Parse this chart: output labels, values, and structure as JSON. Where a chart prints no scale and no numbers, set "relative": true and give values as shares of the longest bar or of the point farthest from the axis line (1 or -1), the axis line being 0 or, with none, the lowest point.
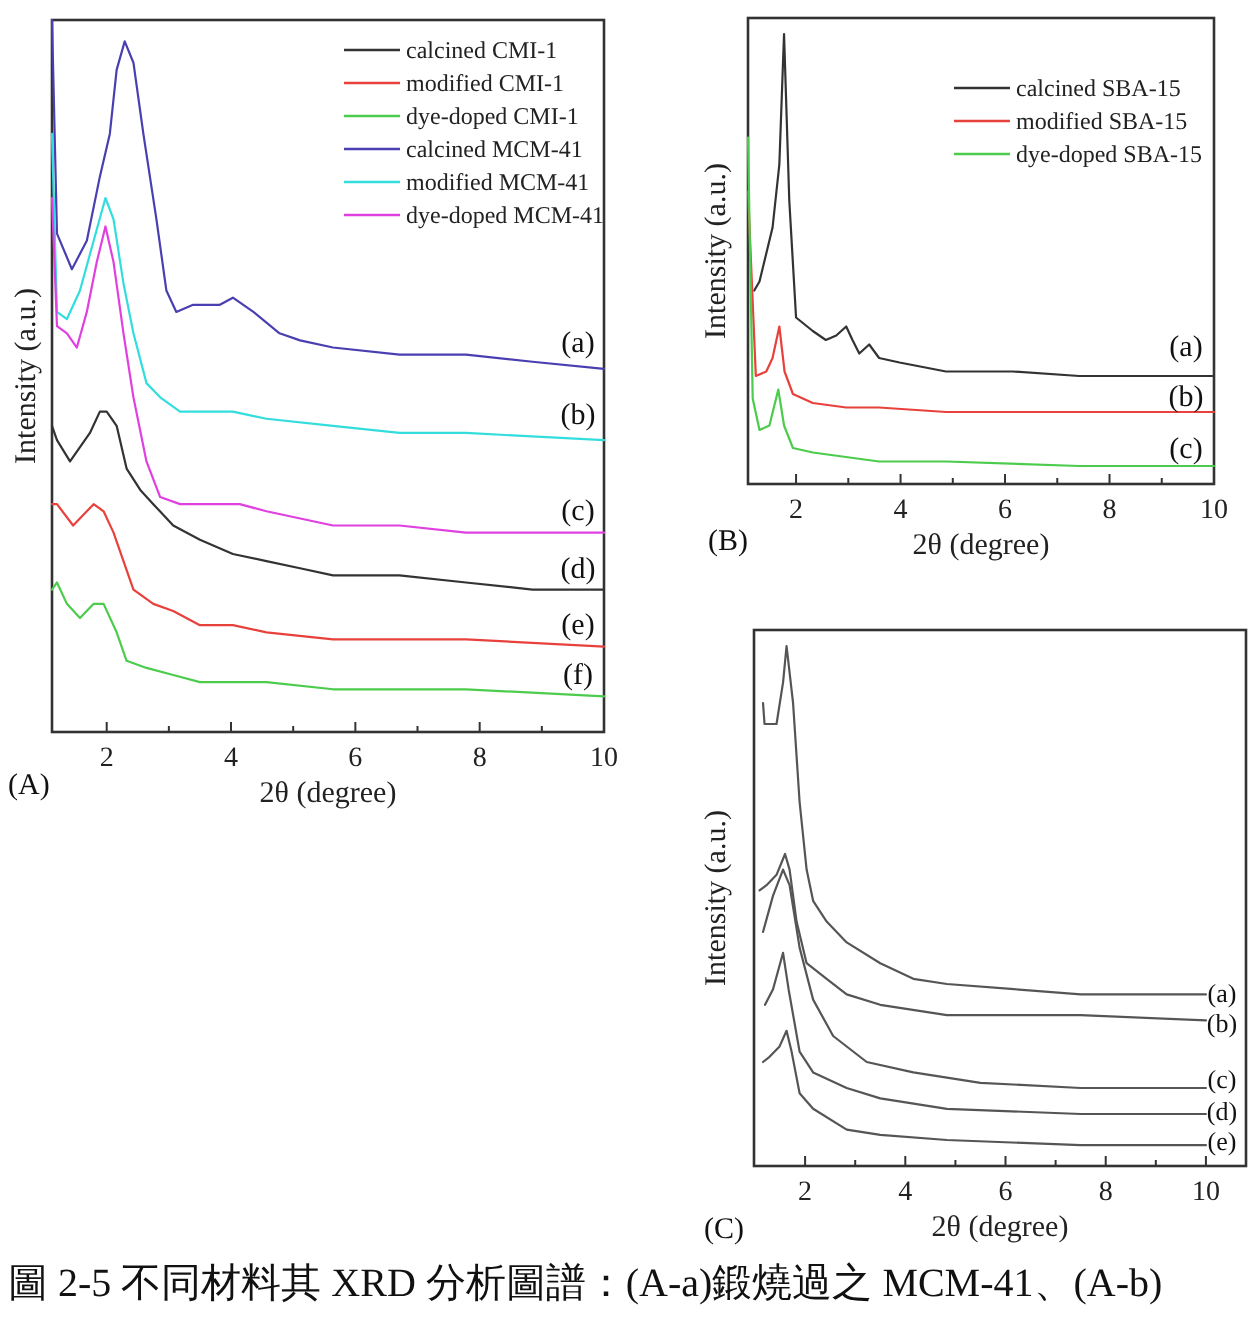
{
  "chart_data": [
    {
      "type": "line",
      "relative": true,
      "xlabel": "2θ (degree)",
      "ylabel": "Intensity (a.u.)",
      "xlim": [
        1.12,
        10
      ],
      "xticks": [
        2,
        {
          "value": 3,
          "label": null
        },
        4,
        {
          "value": 5,
          "label": null
        },
        6,
        {
          "value": 7,
          "label": null
        },
        8,
        {
          "value": 9,
          "label": null
        },
        10
      ],
      "legend": "top right",
      "series": [
        {
          "name": "calcined CMI-1",
          "color": "#333333",
          "x": [
            1.12,
            1.2,
            1.41,
            1.57,
            1.73,
            1.89,
            2.0,
            2.16,
            2.32,
            2.54,
            2.75,
            3.07,
            3.5,
            4.03,
            4.57,
            5.11,
            5.64,
            6.71,
            7.78,
            8.85,
            10
          ],
          "values": [
            0.43,
            0.41,
            0.38,
            0.4,
            0.42,
            0.45,
            0.45,
            0.43,
            0.37,
            0.34,
            0.32,
            0.29,
            0.27,
            0.25,
            0.24,
            0.23,
            0.22,
            0.22,
            0.21,
            0.2,
            0.2
          ]
        },
        {
          "name": "modified CMI-1",
          "color": "#e8413c",
          "x": [
            1.12,
            1.2,
            1.46,
            1.68,
            1.79,
            1.95,
            2.11,
            2.27,
            2.43,
            2.75,
            3.07,
            3.5,
            4.03,
            4.57,
            5.64,
            6.71,
            7.78,
            10
          ],
          "values": [
            0.32,
            0.32,
            0.29,
            0.31,
            0.32,
            0.31,
            0.28,
            0.24,
            0.2,
            0.18,
            0.17,
            0.15,
            0.15,
            0.14,
            0.13,
            0.13,
            0.13,
            0.12
          ]
        },
        {
          "name": "dye-doped CMI-1",
          "color": "#4ccc4c",
          "x": [
            1.12,
            1.2,
            1.36,
            1.57,
            1.79,
            1.95,
            2.16,
            2.32,
            2.64,
            3.07,
            3.5,
            4.57,
            5.64,
            7.78,
            10
          ],
          "values": [
            0.2,
            0.21,
            0.18,
            0.16,
            0.18,
            0.18,
            0.14,
            0.1,
            0.09,
            0.08,
            0.07,
            0.07,
            0.06,
            0.06,
            0.05
          ]
        },
        {
          "name": "calcined MCM-41",
          "color": "#4a3fb0",
          "x": [
            1.12,
            1.2,
            1.44,
            1.68,
            1.89,
            2.05,
            2.16,
            2.29,
            2.43,
            2.59,
            2.8,
            2.96,
            3.12,
            3.39,
            3.82,
            4.03,
            4.36,
            4.78,
            5.11,
            5.64,
            6.71,
            7.78,
            8.85,
            10
          ],
          "values": [
            1.0,
            0.7,
            0.65,
            0.69,
            0.78,
            0.84,
            0.93,
            0.97,
            0.94,
            0.84,
            0.72,
            0.62,
            0.59,
            0.6,
            0.6,
            0.61,
            0.59,
            0.56,
            0.55,
            0.54,
            0.53,
            0.53,
            0.52,
            0.51
          ]
        },
        {
          "name": "modified MCM-41",
          "color": "#33dddd",
          "x": [
            1.12,
            1.2,
            1.36,
            1.57,
            1.79,
            1.98,
            2.11,
            2.27,
            2.43,
            2.64,
            2.86,
            3.18,
            4.03,
            4.57,
            5.64,
            6.71,
            7.78,
            10
          ],
          "values": [
            0.84,
            0.59,
            0.58,
            0.62,
            0.69,
            0.75,
            0.72,
            0.63,
            0.56,
            0.49,
            0.47,
            0.45,
            0.45,
            0.44,
            0.43,
            0.42,
            0.42,
            0.41
          ]
        },
        {
          "name": "dye-doped MCM-41",
          "color": "#e040e0",
          "x": [
            1.12,
            1.2,
            1.36,
            1.52,
            1.68,
            1.84,
            1.98,
            2.11,
            2.27,
            2.43,
            2.64,
            2.86,
            3.18,
            3.71,
            4.14,
            4.57,
            5.64,
            6.71,
            7.78,
            10
          ],
          "values": [
            0.75,
            0.57,
            0.56,
            0.54,
            0.59,
            0.66,
            0.71,
            0.66,
            0.56,
            0.47,
            0.38,
            0.33,
            0.32,
            0.32,
            0.32,
            0.31,
            0.29,
            0.29,
            0.28,
            0.28
          ]
        }
      ],
      "annotations": [
        "(a)",
        "(b)",
        "(c)",
        "(d)",
        "(e)",
        "(f)",
        "(A)"
      ]
    },
    {
      "type": "line",
      "relative": true,
      "xlabel": "2θ (degree)",
      "ylabel": "Intensity (a.u.)",
      "xlim": [
        1.08,
        10
      ],
      "xticks": [
        2,
        {
          "value": 3,
          "label": null
        },
        4,
        {
          "value": 5,
          "label": null
        },
        6,
        {
          "value": 7,
          "label": null
        },
        8,
        {
          "value": 9,
          "label": null
        },
        10
      ],
      "legend": "top right",
      "series": [
        {
          "name": "calcined SBA-15",
          "color": "#333333",
          "x": [
            1.2,
            1.3,
            1.55,
            1.68,
            1.77,
            1.87,
            2.0,
            2.32,
            2.57,
            2.77,
            2.96,
            3.08,
            3.21,
            3.4,
            3.59,
            3.98,
            4.87,
            6.15,
            7.42,
            10
          ],
          "values": [
            0.43,
            0.45,
            0.57,
            0.71,
            1.0,
            0.63,
            0.37,
            0.34,
            0.32,
            0.33,
            0.35,
            0.32,
            0.29,
            0.31,
            0.28,
            0.27,
            0.25,
            0.25,
            0.24,
            0.24
          ]
        },
        {
          "name": "modified SBA-15",
          "color": "#e8413c",
          "x": [
            1.08,
            1.23,
            1.43,
            1.55,
            1.68,
            1.78,
            1.94,
            2.32,
            2.96,
            3.59,
            4.87,
            7.42,
            10
          ],
          "values": [
            0.65,
            0.24,
            0.25,
            0.28,
            0.35,
            0.25,
            0.2,
            0.18,
            0.17,
            0.17,
            0.16,
            0.16,
            0.16
          ]
        },
        {
          "name": "dye-doped SBA-15",
          "color": "#4ccc4c",
          "x": [
            1.08,
            1.17,
            1.3,
            1.49,
            1.66,
            1.77,
            1.94,
            2.32,
            3.59,
            4.87,
            7.42,
            10
          ],
          "values": [
            0.77,
            0.19,
            0.12,
            0.13,
            0.21,
            0.13,
            0.08,
            0.07,
            0.05,
            0.05,
            0.04,
            0.04
          ]
        }
      ],
      "annotations": [
        "(a)",
        "(b)",
        "(c)",
        "(B)"
      ]
    },
    {
      "type": "line",
      "relative": true,
      "xlabel": "2θ (degree)",
      "ylabel": "Intensity (a.u.)",
      "xlim": [
        0.98,
        10.8
      ],
      "xticks": [
        2,
        {
          "value": 3,
          "label": null
        },
        4,
        {
          "value": 5,
          "label": null
        },
        6,
        {
          "value": 7,
          "label": null
        },
        8,
        {
          "value": 9,
          "label": null
        },
        10
      ],
      "series": [
        {
          "color": "#555555",
          "x": [
            1.16,
            1.19,
            1.43,
            1.56,
            1.63,
            1.76,
            1.89,
            2.03,
            2.16,
            2.43,
            2.83,
            3.5,
            4.16,
            4.83,
            6.17,
            7.5,
            10
          ],
          "values": [
            0.89,
            0.85,
            0.85,
            0.93,
            1.0,
            0.89,
            0.7,
            0.57,
            0.51,
            0.47,
            0.43,
            0.39,
            0.36,
            0.35,
            0.34,
            0.33,
            0.33
          ]
        },
        {
          "color": "#555555",
          "x": [
            1.09,
            1.23,
            1.43,
            1.6,
            1.69,
            1.83,
            2.03,
            2.43,
            2.83,
            3.5,
            4.83,
            6.17,
            7.5,
            10
          ],
          "values": [
            0.53,
            0.54,
            0.56,
            0.6,
            0.57,
            0.47,
            0.39,
            0.36,
            0.33,
            0.31,
            0.29,
            0.29,
            0.29,
            0.28
          ]
        },
        {
          "color": "#555555",
          "x": [
            1.16,
            1.36,
            1.56,
            1.69,
            1.89,
            2.16,
            2.56,
            3.23,
            4.16,
            5.5,
            7.5,
            10
          ],
          "values": [
            0.45,
            0.52,
            0.57,
            0.54,
            0.42,
            0.32,
            0.25,
            0.2,
            0.18,
            0.16,
            0.15,
            0.15
          ]
        },
        {
          "color": "#555555",
          "x": [
            1.2,
            1.36,
            1.56,
            1.67,
            1.89,
            2.16,
            2.83,
            3.5,
            4.83,
            7.5,
            10
          ],
          "values": [
            0.31,
            0.34,
            0.41,
            0.34,
            0.22,
            0.18,
            0.15,
            0.13,
            0.11,
            0.1,
            0.1
          ]
        },
        {
          "color": "#555555",
          "x": [
            1.16,
            1.29,
            1.49,
            1.63,
            1.73,
            1.89,
            2.16,
            2.83,
            3.5,
            4.83,
            7.5,
            10
          ],
          "values": [
            0.2,
            0.21,
            0.23,
            0.26,
            0.22,
            0.14,
            0.11,
            0.07,
            0.06,
            0.05,
            0.04,
            0.04
          ]
        }
      ],
      "annotations": [
        "(a)",
        "(b)",
        "(c)",
        "(d)",
        "(e)",
        "(C)",
        "圖 2-5 不同材料其 XRD 分析圖譜：(A-a)鍛燒過之 MCM-41、(A-b)"
      ]
    }
  ]
}
